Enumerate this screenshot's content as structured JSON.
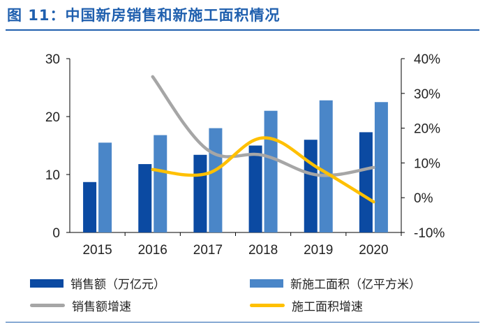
{
  "figure_title": "图 11：中国新房销售和新施工面积情况",
  "chart_data": {
    "type": "bar",
    "categories": [
      "2015",
      "2016",
      "2017",
      "2018",
      "2019",
      "2020"
    ],
    "ylim_left": [
      0,
      30
    ],
    "yticks_left": [
      "0",
      "10",
      "20",
      "30"
    ],
    "ylim_right": [
      -10,
      40
    ],
    "yticks_right": [
      "-10%",
      "0%",
      "10%",
      "20%",
      "30%",
      "40%"
    ],
    "series": [
      {
        "name": "销售额（万亿元）",
        "type": "bar",
        "axis": "left",
        "color": "#0b4aa2",
        "values": [
          8.7,
          11.8,
          13.4,
          15.0,
          16.0,
          17.3
        ]
      },
      {
        "name": "新施工面积（亿平方米）",
        "type": "bar",
        "axis": "left",
        "color": "#4a86c8",
        "values": [
          15.5,
          16.8,
          18.0,
          21.0,
          22.8,
          22.5
        ]
      },
      {
        "name": "销售额增速",
        "type": "line",
        "axis": "right",
        "color": "#a6a6a6",
        "values": [
          null,
          34.8,
          13.7,
          12.2,
          6.5,
          8.7
        ]
      },
      {
        "name": "施工面积增速",
        "type": "line",
        "axis": "right",
        "color": "#ffc000",
        "values": [
          null,
          8.1,
          7.0,
          17.2,
          8.5,
          -1.2
        ]
      }
    ],
    "xlabel": "",
    "ylabel": "",
    "legend": "bottom"
  }
}
